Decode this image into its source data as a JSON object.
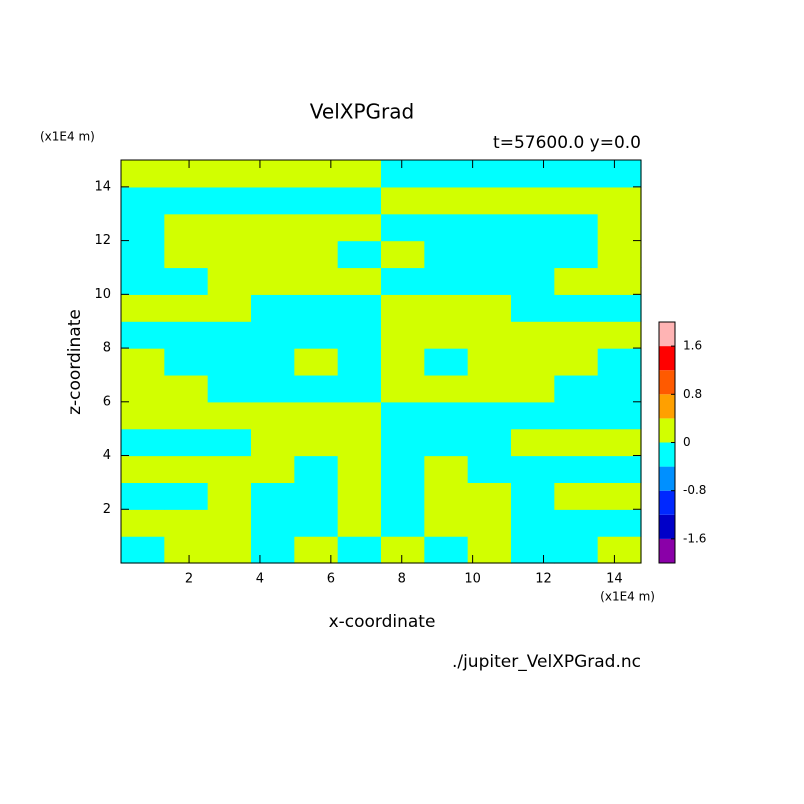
{
  "chart_data": {
    "type": "contour",
    "title": "VelXPGrad",
    "subtitle": "t=57600.0 y=0.0",
    "x_label": "x-coordinate",
    "y_label": "z-coordinate",
    "x_unit": "(x1E4 m)",
    "y_unit": "(x1E4 m)",
    "footer": "./jupiter_VelXPGrad.nc",
    "xlim": [
      0.08,
      14.75
    ],
    "ylim": [
      0,
      15
    ],
    "xticks": [
      2,
      4,
      6,
      8,
      10,
      12,
      14
    ],
    "yticks": [
      2,
      4,
      6,
      8,
      10,
      12,
      14
    ],
    "levels": [
      -2,
      -1.6,
      -1.2,
      -0.8,
      -0.4,
      0,
      0.4,
      0.8,
      1.2,
      1.6,
      2
    ],
    "colors": [
      "#8a00a8",
      "#0000c8",
      "#0028ff",
      "#0090ff",
      "#00ffff",
      "#d2ff00",
      "#ffa000",
      "#ff5a00",
      "#ff0000",
      "#ffb4b4"
    ],
    "colorbar_ticks": [
      -1.6,
      -0.8,
      0,
      0.8,
      1.6
    ],
    "z": [
      [
        -0.2,
        0.2,
        0.2,
        -0.2,
        0.2,
        -0.2,
        0.2,
        -0.2,
        0.2,
        -0.2,
        -0.2,
        0.2
      ],
      [
        0.2,
        0.2,
        0.2,
        -0.2,
        -0.2,
        0.2,
        -0.2,
        0.2,
        0.2,
        -0.2,
        -0.2,
        -0.2
      ],
      [
        -0.2,
        -0.2,
        0.2,
        -0.2,
        -0.2,
        0.2,
        -0.2,
        0.2,
        0.2,
        -0.2,
        0.2,
        0.2
      ],
      [
        0.2,
        0.2,
        0.2,
        0.2,
        -0.2,
        0.2,
        -0.2,
        0.2,
        -0.2,
        -0.2,
        -0.2,
        -0.2
      ],
      [
        -0.2,
        -0.2,
        -0.2,
        0.2,
        0.2,
        0.2,
        -0.2,
        -0.2,
        -0.2,
        0.2,
        0.2,
        0.2
      ],
      [
        0.2,
        0.2,
        0.2,
        0.2,
        0.2,
        0.2,
        -0.2,
        -0.2,
        -0.2,
        -0.2,
        -0.2,
        -0.2
      ],
      [
        0.2,
        0.2,
        -0.2,
        -0.2,
        -0.2,
        -0.2,
        0.2,
        0.2,
        0.2,
        0.2,
        -0.2,
        -0.2
      ],
      [
        0.2,
        -0.2,
        -0.2,
        -0.2,
        0.2,
        -0.2,
        0.2,
        -0.2,
        0.2,
        0.2,
        0.2,
        -0.2
      ],
      [
        -0.2,
        -0.2,
        -0.2,
        -0.2,
        -0.2,
        -0.2,
        0.2,
        0.2,
        0.2,
        0.2,
        0.2,
        0.2
      ],
      [
        0.2,
        0.2,
        0.2,
        -0.2,
        -0.2,
        -0.2,
        0.2,
        0.2,
        0.2,
        -0.2,
        -0.2,
        -0.2
      ],
      [
        -0.2,
        -0.2,
        0.2,
        0.2,
        0.2,
        0.2,
        -0.2,
        -0.2,
        -0.2,
        -0.2,
        0.2,
        0.2
      ],
      [
        -0.2,
        0.2,
        0.2,
        0.2,
        0.2,
        -0.2,
        0.2,
        -0.2,
        -0.2,
        -0.2,
        -0.2,
        0.2
      ],
      [
        -0.2,
        0.2,
        0.2,
        0.2,
        0.2,
        0.2,
        -0.2,
        -0.2,
        -0.2,
        -0.2,
        -0.2,
        0.2
      ],
      [
        -0.2,
        -0.2,
        -0.2,
        -0.2,
        -0.2,
        -0.2,
        0.2,
        0.2,
        0.2,
        0.2,
        0.2,
        0.2
      ],
      [
        0.2,
        0.2,
        0.2,
        0.2,
        0.2,
        0.2,
        -0.2,
        -0.2,
        -0.2,
        -0.2,
        -0.2,
        -0.2
      ]
    ]
  }
}
